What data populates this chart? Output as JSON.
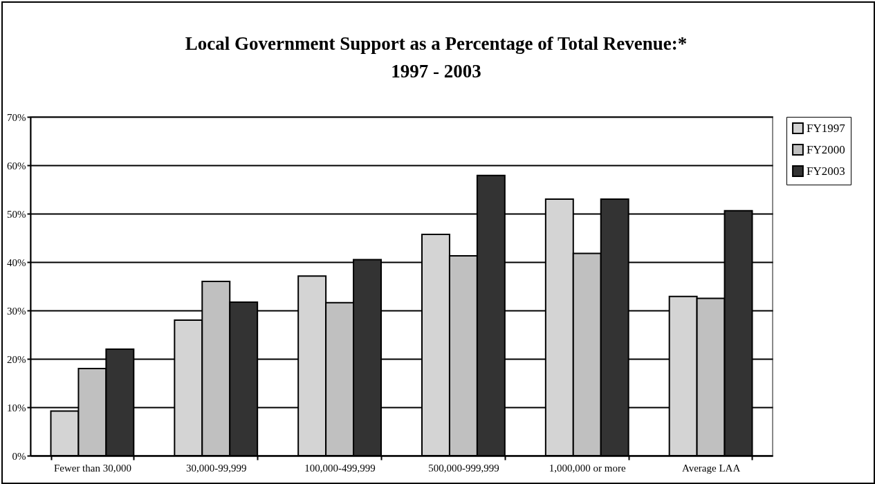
{
  "chart_data": {
    "type": "bar",
    "title": "Local Government Support as a Percentage of Total Revenue:*\n1997 - 2003",
    "categories": [
      "Fewer than 30,000",
      "30,000-99,999",
      "100,000-499,999",
      "500,000-999,999",
      "1,000,000 or more",
      "Average LAA"
    ],
    "series": [
      {
        "name": "FY1997",
        "color": "#d4d4d4",
        "values": [
          9.2,
          28.0,
          37.1,
          45.7,
          53.0,
          32.9
        ]
      },
      {
        "name": "FY2000",
        "color": "#c0c0c0",
        "values": [
          18.0,
          36.0,
          31.6,
          41.3,
          41.8,
          32.5
        ]
      },
      {
        "name": "FY2003",
        "color": "#333333",
        "values": [
          22.0,
          31.7,
          40.5,
          57.9,
          53.0,
          50.6
        ]
      }
    ],
    "ylim": [
      0,
      70
    ],
    "yticks": [
      {
        "value": 0,
        "label": "0%"
      },
      {
        "value": 10,
        "label": "10%"
      },
      {
        "value": 20,
        "label": "20%"
      },
      {
        "value": 30,
        "label": "30%"
      },
      {
        "value": 40,
        "label": "40%"
      },
      {
        "value": 50,
        "label": "50%"
      },
      {
        "value": 60,
        "label": "60%"
      },
      {
        "value": 70,
        "label": "70%"
      }
    ],
    "grid": "y",
    "legend": "right"
  }
}
